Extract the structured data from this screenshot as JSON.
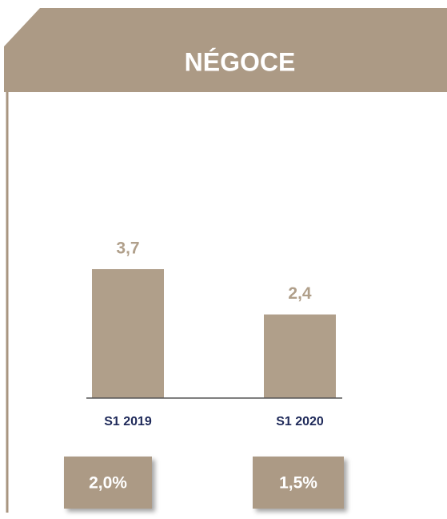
{
  "chart_data": {
    "type": "bar",
    "title": "NÉGOCE",
    "categories": [
      "S1 2019",
      "S1 2020"
    ],
    "values": [
      3.7,
      2.4
    ],
    "value_labels": [
      "3,7",
      "2,4"
    ],
    "color": "#b09f8a",
    "annotations": [
      "2,0%",
      "1,5%"
    ]
  }
}
